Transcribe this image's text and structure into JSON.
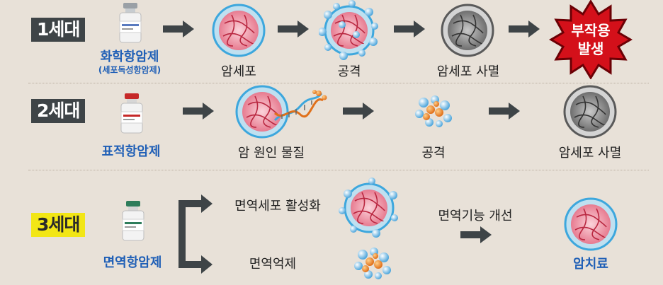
{
  "rows": [
    {
      "generation": "1세대",
      "drug": "화학항암제",
      "drug_sub": "(세포독성항암제)",
      "steps": [
        "암세포",
        "공격",
        "암세포 사멸"
      ],
      "outcome": [
        "부작용",
        "발생"
      ]
    },
    {
      "generation": "2세대",
      "drug": "표적항암제",
      "steps": [
        "암 원인 물질",
        "공격",
        "암세포 사멸"
      ]
    },
    {
      "generation": "3세대",
      "drug": "면역항암제",
      "branch_top": "면역세포 활성화",
      "branch_bottom": "면역억제",
      "improve": "면역기능 개선",
      "result": "암치료"
    }
  ],
  "colors": {
    "arrow": "#3e4447",
    "badge_dark": "#3e4447",
    "badge_yellow": "#f2e616",
    "drug_text": "#1f5fb6",
    "burst_red": "#d4101a",
    "cell_ring": "#3da7dd",
    "cell_core": "#f2a3b0"
  },
  "icons": [
    "vial-icon",
    "cancer-cell-icon",
    "attacked-cell-icon",
    "dead-cell-icon",
    "burst-icon",
    "dna-icon",
    "molecule-cluster-icon"
  ]
}
